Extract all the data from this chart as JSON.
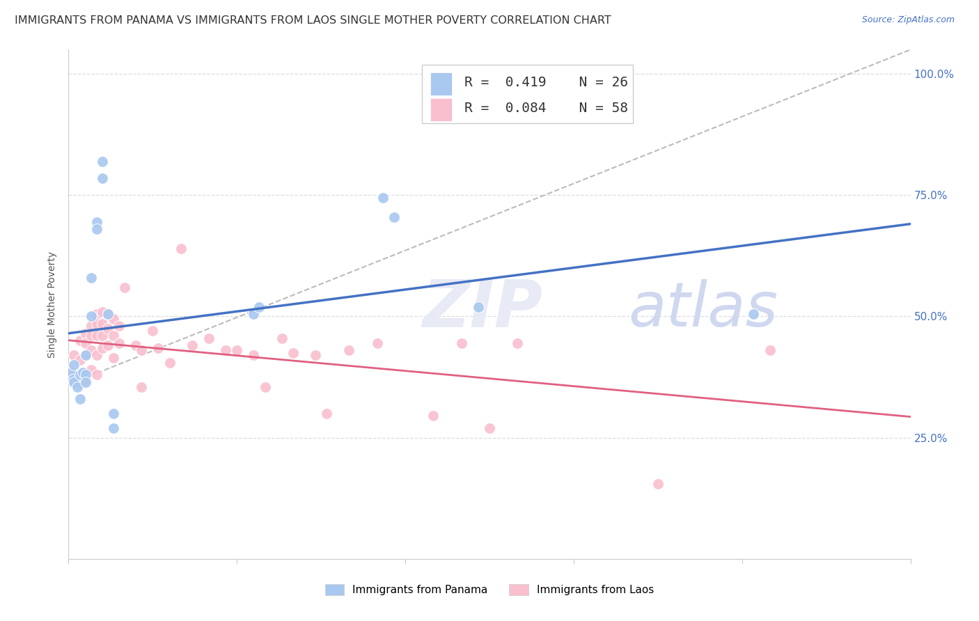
{
  "title": "IMMIGRANTS FROM PANAMA VS IMMIGRANTS FROM LAOS SINGLE MOTHER POVERTY CORRELATION CHART",
  "source": "Source: ZipAtlas.com",
  "ylabel": "Single Mother Poverty",
  "xlim": [
    0.0,
    0.15
  ],
  "ylim": [
    0.0,
    1.05
  ],
  "color_panama": "#A8C8F0",
  "color_laos": "#F9BFCF",
  "color_line_panama": "#4472C4",
  "color_line_laos": "#E06080",
  "color_diag": "#BBBBBB",
  "panama_x": [
    0.0005,
    0.0008,
    0.001,
    0.001,
    0.0015,
    0.002,
    0.002,
    0.0025,
    0.003,
    0.003,
    0.003,
    0.004,
    0.004,
    0.005,
    0.005,
    0.006,
    0.006,
    0.007,
    0.008,
    0.008,
    0.033,
    0.034,
    0.056,
    0.058,
    0.073,
    0.122
  ],
  "panama_y": [
    0.385,
    0.37,
    0.4,
    0.365,
    0.355,
    0.38,
    0.33,
    0.385,
    0.42,
    0.38,
    0.365,
    0.58,
    0.5,
    0.695,
    0.68,
    0.785,
    0.82,
    0.505,
    0.27,
    0.3,
    0.505,
    0.52,
    0.745,
    0.705,
    0.52,
    0.505
  ],
  "laos_x": [
    0.0005,
    0.001,
    0.001,
    0.0015,
    0.002,
    0.002,
    0.002,
    0.003,
    0.003,
    0.003,
    0.003,
    0.004,
    0.004,
    0.004,
    0.004,
    0.005,
    0.005,
    0.005,
    0.005,
    0.005,
    0.006,
    0.006,
    0.006,
    0.006,
    0.007,
    0.007,
    0.007,
    0.008,
    0.008,
    0.008,
    0.009,
    0.009,
    0.01,
    0.012,
    0.013,
    0.013,
    0.015,
    0.016,
    0.018,
    0.02,
    0.022,
    0.025,
    0.028,
    0.03,
    0.033,
    0.035,
    0.038,
    0.04,
    0.044,
    0.046,
    0.05,
    0.055,
    0.065,
    0.07,
    0.075,
    0.08,
    0.105,
    0.125
  ],
  "laos_y": [
    0.38,
    0.42,
    0.365,
    0.37,
    0.45,
    0.41,
    0.36,
    0.465,
    0.445,
    0.42,
    0.37,
    0.48,
    0.46,
    0.43,
    0.39,
    0.505,
    0.485,
    0.46,
    0.42,
    0.38,
    0.51,
    0.485,
    0.46,
    0.435,
    0.505,
    0.475,
    0.44,
    0.495,
    0.46,
    0.415,
    0.48,
    0.445,
    0.56,
    0.44,
    0.43,
    0.355,
    0.47,
    0.435,
    0.405,
    0.64,
    0.44,
    0.455,
    0.43,
    0.43,
    0.42,
    0.355,
    0.455,
    0.425,
    0.42,
    0.3,
    0.43,
    0.445,
    0.295,
    0.445,
    0.27,
    0.445,
    0.155,
    0.43
  ],
  "background_color": "#FFFFFF",
  "grid_color": "#DDDDDD",
  "title_fontsize": 11.5,
  "source_fontsize": 9,
  "legend_fontsize": 14,
  "tick_label_color": "#4472C4",
  "watermark_zip": "ZIP",
  "watermark_atlas": "atlas",
  "watermark_color": "#E8EAF5",
  "watermark_fontsize": 68
}
